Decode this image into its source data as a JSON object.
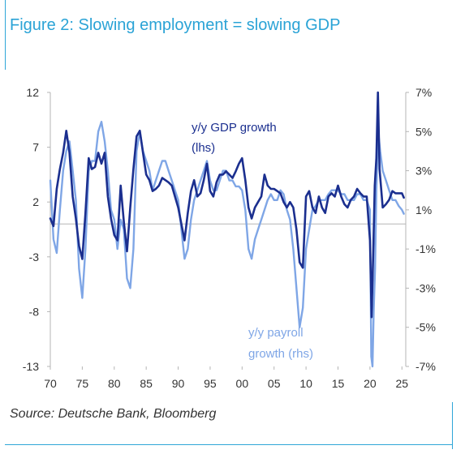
{
  "figure": {
    "title": "Figure 2: Slowing employment = slowing GDP",
    "source": "Source: Deutsche Bank, Bloomberg"
  },
  "colors": {
    "title": "#2aa3d6",
    "frame": "#2fa6d8",
    "gdp": "#1b2f8f",
    "payroll": "#7fa6e6",
    "axis": "#b5b5b5"
  },
  "chart_data": {
    "type": "line",
    "title": "",
    "xlabel": "",
    "ylabel": "",
    "x_ticks": [
      "70",
      "75",
      "80",
      "85",
      "90",
      "95",
      "00",
      "05",
      "10",
      "15",
      "20",
      "25"
    ],
    "x_tick_years": [
      1970,
      1975,
      1980,
      1985,
      1990,
      1995,
      2000,
      2005,
      2010,
      2015,
      2020,
      2025
    ],
    "xlim": [
      1970,
      2025.6
    ],
    "left_axis": {
      "ticks": [
        "12",
        "7",
        "2",
        "-3",
        "-8",
        "-13"
      ],
      "values": [
        12,
        7,
        2,
        -3,
        -8,
        -13
      ],
      "ylim": [
        -13,
        12
      ]
    },
    "right_axis": {
      "ticks": [
        "7%",
        "5%",
        "3%",
        "1%",
        "-1%",
        "-3%",
        "-5%",
        "-7%"
      ],
      "values": [
        7,
        5,
        3,
        1,
        -1,
        -3,
        -5,
        -7
      ],
      "ylim": [
        -7,
        7
      ]
    },
    "grid": false,
    "zero_line": true,
    "annotations": [
      {
        "text": "y/y GDP growth",
        "series": "gdp"
      },
      {
        "text": "(lhs)",
        "series": "gdp"
      },
      {
        "text": "y/y payroll",
        "series": "payroll"
      },
      {
        "text": "growth (rhs)",
        "series": "payroll"
      }
    ],
    "series": [
      {
        "id": "gdp",
        "axis": "left",
        "x": [
          1970.0,
          1970.5,
          1971.0,
          1971.5,
          1972.0,
          1972.5,
          1973.0,
          1973.5,
          1974.0,
          1974.5,
          1975.0,
          1975.5,
          1976.0,
          1976.5,
          1977.0,
          1977.5,
          1978.0,
          1978.5,
          1979.0,
          1979.5,
          1980.0,
          1980.5,
          1981.0,
          1981.5,
          1982.0,
          1982.5,
          1983.0,
          1983.5,
          1984.0,
          1984.5,
          1985.0,
          1985.5,
          1986.0,
          1986.5,
          1987.0,
          1987.5,
          1988.0,
          1988.5,
          1989.0,
          1989.5,
          1990.0,
          1990.5,
          1991.0,
          1991.5,
          1992.0,
          1992.5,
          1993.0,
          1993.5,
          1994.0,
          1994.5,
          1995.0,
          1995.5,
          1996.0,
          1996.5,
          1997.0,
          1997.5,
          1998.0,
          1998.5,
          1999.0,
          1999.5,
          2000.0,
          2000.5,
          2001.0,
          2001.5,
          2002.0,
          2002.5,
          2003.0,
          2003.5,
          2004.0,
          2004.5,
          2005.0,
          2005.5,
          2006.0,
          2006.5,
          2007.0,
          2007.5,
          2008.0,
          2008.5,
          2009.0,
          2009.5,
          2010.0,
          2010.5,
          2011.0,
          2011.5,
          2012.0,
          2012.5,
          2013.0,
          2013.5,
          2014.0,
          2014.5,
          2015.0,
          2015.5,
          2016.0,
          2016.5,
          2017.0,
          2017.5,
          2018.0,
          2018.5,
          2019.0,
          2019.5,
          2020.0,
          2020.25,
          2020.5,
          2020.75,
          2021.0,
          2021.25,
          2021.5,
          2022.0,
          2022.5,
          2023.0,
          2023.5,
          2024.0,
          2024.5,
          2025.0,
          2025.3
        ],
        "values": [
          0.5,
          -0.2,
          3.2,
          5.0,
          6.5,
          8.5,
          6.5,
          2.5,
          0.5,
          -2.0,
          -3.2,
          1.0,
          6.0,
          5.0,
          5.2,
          6.5,
          5.5,
          6.5,
          2.5,
          0.5,
          -1.0,
          -1.5,
          3.5,
          0.2,
          -2.5,
          1.5,
          5.0,
          8.0,
          8.5,
          6.5,
          4.5,
          4.0,
          3.0,
          3.2,
          3.5,
          4.2,
          4.0,
          3.8,
          3.5,
          2.5,
          1.5,
          0.0,
          -1.5,
          1.0,
          3.0,
          4.0,
          2.5,
          2.8,
          4.0,
          5.5,
          3.0,
          2.5,
          3.8,
          4.5,
          4.5,
          4.8,
          4.5,
          4.2,
          4.8,
          5.5,
          6.0,
          4.0,
          1.5,
          0.5,
          1.5,
          2.0,
          2.5,
          4.5,
          3.5,
          3.2,
          3.2,
          3.0,
          2.8,
          2.0,
          1.5,
          2.0,
          1.5,
          -0.5,
          -3.5,
          -4.0,
          2.5,
          3.0,
          1.5,
          1.0,
          2.5,
          1.5,
          1.0,
          2.5,
          2.8,
          2.5,
          3.5,
          2.5,
          1.8,
          1.5,
          2.2,
          2.5,
          3.2,
          2.8,
          2.5,
          2.5,
          -1.5,
          -8.5,
          -3.0,
          3.5,
          6.0,
          12.0,
          5.0,
          1.5,
          1.8,
          2.2,
          3.0,
          2.8,
          2.8,
          2.8,
          2.4
        ]
      },
      {
        "id": "payroll",
        "axis": "right",
        "x": [
          1970.0,
          1970.5,
          1971.0,
          1971.5,
          1972.0,
          1972.5,
          1973.0,
          1973.5,
          1974.0,
          1974.5,
          1975.0,
          1975.5,
          1976.0,
          1976.5,
          1977.0,
          1977.5,
          1978.0,
          1978.5,
          1979.0,
          1979.5,
          1980.0,
          1980.5,
          1981.0,
          1981.5,
          1982.0,
          1982.5,
          1983.0,
          1983.5,
          1984.0,
          1984.5,
          1985.0,
          1985.5,
          1986.0,
          1986.5,
          1987.0,
          1987.5,
          1988.0,
          1988.5,
          1989.0,
          1989.5,
          1990.0,
          1990.5,
          1991.0,
          1991.5,
          1992.0,
          1992.5,
          1993.0,
          1993.5,
          1994.0,
          1994.5,
          1995.0,
          1995.5,
          1996.0,
          1996.5,
          1997.0,
          1997.5,
          1998.0,
          1998.5,
          1999.0,
          1999.5,
          2000.0,
          2000.5,
          2001.0,
          2001.5,
          2002.0,
          2002.5,
          2003.0,
          2003.5,
          2004.0,
          2004.5,
          2005.0,
          2005.5,
          2006.0,
          2006.5,
          2007.0,
          2007.5,
          2008.0,
          2008.5,
          2009.0,
          2009.5,
          2010.0,
          2010.5,
          2011.0,
          2011.5,
          2012.0,
          2012.5,
          2013.0,
          2013.5,
          2014.0,
          2014.5,
          2015.0,
          2015.5,
          2016.0,
          2016.5,
          2017.0,
          2017.5,
          2018.0,
          2018.5,
          2019.0,
          2019.5,
          2020.0,
          2020.2,
          2020.4,
          2020.6,
          2020.8,
          2021.0,
          2021.3,
          2021.6,
          2022.0,
          2022.5,
          2023.0,
          2023.5,
          2024.0,
          2024.5,
          2025.0,
          2025.3
        ],
        "values": [
          2.5,
          -0.5,
          -1.2,
          1.0,
          3.0,
          4.0,
          4.5,
          3.0,
          1.5,
          -2.0,
          -3.5,
          -1.0,
          3.0,
          3.5,
          3.5,
          5.0,
          5.5,
          4.5,
          3.0,
          1.0,
          0.5,
          -1.0,
          0.5,
          0.0,
          -2.5,
          -3.0,
          -1.0,
          4.0,
          5.0,
          4.0,
          3.5,
          3.0,
          2.0,
          2.5,
          3.0,
          3.5,
          3.5,
          3.0,
          2.5,
          2.0,
          1.5,
          0.0,
          -1.5,
          -1.0,
          0.5,
          1.5,
          2.0,
          2.5,
          3.0,
          3.5,
          2.5,
          2.0,
          2.0,
          2.5,
          3.0,
          3.0,
          2.5,
          2.5,
          2.2,
          2.2,
          2.0,
          1.0,
          -1.0,
          -1.5,
          -0.5,
          0.0,
          0.5,
          1.0,
          1.5,
          1.8,
          1.5,
          1.5,
          2.0,
          1.8,
          1.0,
          0.5,
          -1.0,
          -3.0,
          -5.0,
          -4.0,
          -1.0,
          0.0,
          1.0,
          1.2,
          1.5,
          1.5,
          1.5,
          1.8,
          2.0,
          2.0,
          2.0,
          1.8,
          1.8,
          1.5,
          1.5,
          1.5,
          1.8,
          1.8,
          1.5,
          1.5,
          1.0,
          -6.5,
          -7.0,
          -4.0,
          -2.0,
          2.0,
          5.0,
          4.0,
          3.0,
          2.5,
          2.0,
          1.5,
          1.5,
          1.2,
          1.0,
          0.8
        ]
      }
    ]
  }
}
